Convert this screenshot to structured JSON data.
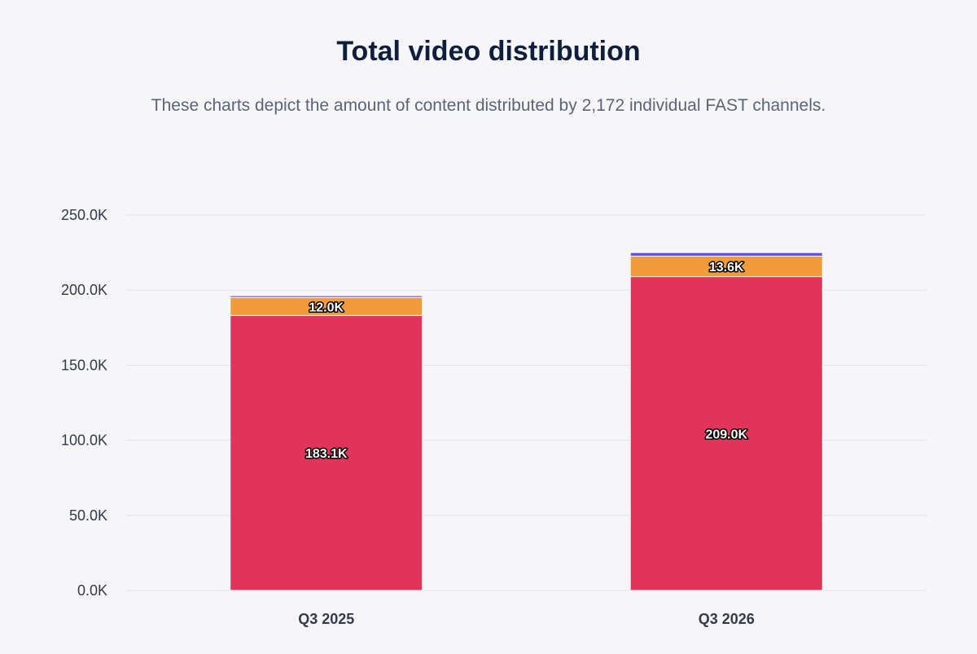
{
  "chart_data": {
    "type": "bar",
    "stacked": true,
    "title": "Total video distribution",
    "subtitle": "These charts depict the amount of content distributed by 2,172 individual FAST channels.",
    "xlabel": "",
    "ylabel": "",
    "categories": [
      "Q3 2025",
      "Q3 2026"
    ],
    "ylim": [
      0,
      250000
    ],
    "yticks": [
      0,
      50000,
      100000,
      150000,
      200000,
      250000
    ],
    "ytick_labels": [
      "0.0K",
      "50.0K",
      "100.0K",
      "150.0K",
      "200.0K",
      "250.0K"
    ],
    "grid": true,
    "legend": "none",
    "series": [
      {
        "values": [
          183100,
          209000
        ],
        "color": "#e0345a",
        "labels": [
          "183.1K",
          "209.0K"
        ]
      },
      {
        "values": [
          12000,
          13600
        ],
        "color": "#f29a3c",
        "labels": [
          "12.0K",
          "13.6K"
        ]
      },
      {
        "values": [
          1200,
          2400
        ],
        "color": "#6a4fd8",
        "labels": [
          "",
          ""
        ]
      }
    ]
  }
}
